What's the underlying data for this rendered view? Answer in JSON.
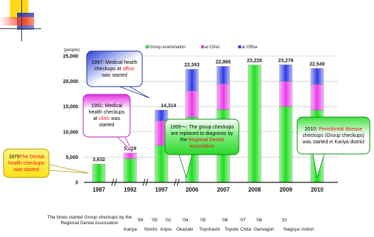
{
  "chart_data": {
    "type": "bar",
    "stacked": true,
    "categories": [
      "1987",
      "1992",
      "1997",
      "2006",
      "2007",
      "2008",
      "2009",
      "2010"
    ],
    "series": [
      {
        "name": "Group examination",
        "color": "#33e633",
        "values": [
          3632,
          4700,
          7300,
          12900,
          14400,
          23226,
          15000,
          14300
        ]
      },
      {
        "name": "at Clinic",
        "color": "#ee44ee",
        "values": [
          0,
          1119,
          4900,
          5200,
          5100,
          0,
          5000,
          5100
        ]
      },
      {
        "name": "at Office",
        "color": "#3344ee",
        "values": [
          0,
          0,
          2114,
          4293,
          3465,
          0,
          3278,
          3149
        ]
      }
    ],
    "totals": [
      "3,632",
      "5,819",
      "14,314",
      "22,393",
      "22,965",
      "23,226",
      "23,278",
      "22,549"
    ],
    "ylabel": "(people)",
    "ylim": [
      0,
      25000
    ],
    "yticks": [
      "0",
      "5,000",
      "10,000",
      "15,000",
      "20,000",
      "25,000"
    ],
    "grid": true,
    "legend_position": "top",
    "annotations": [
      {
        "id": "c1979",
        "parts": [
          [
            "1979",
            ""
          ],
          [
            "The Dental health checkups was started",
            "red"
          ]
        ]
      },
      {
        "id": "c1991",
        "parts": [
          [
            "1991: Medical health checkups at ",
            ""
          ],
          [
            "clinic",
            "red"
          ],
          [
            " was started",
            ""
          ]
        ]
      },
      {
        "id": "c1997",
        "parts": [
          [
            "1997: Medical health checkups at ",
            ""
          ],
          [
            "office",
            "red"
          ],
          [
            " was started",
            ""
          ]
        ]
      },
      {
        "id": "c1999",
        "parts": [
          [
            "1999～: The group checkups are replaced to diagnosis by the ",
            ""
          ],
          [
            "Regional Dental association",
            "red"
          ]
        ]
      },
      {
        "id": "c2010",
        "parts": [
          [
            "2010: ",
            ""
          ],
          [
            "Periodontal disease",
            "red"
          ],
          [
            " checkups (Group checkups) was started in Kariya district",
            ""
          ]
        ]
      }
    ]
  },
  "footer": {
    "caption": "The times started Group checkups by the Regional Dental Association",
    "years": [
      "'99",
      "'00",
      "'02",
      "'04",
      "'05",
      "'06",
      "'07",
      "'08",
      "'10"
    ],
    "places": [
      "Kariya",
      "Nishio",
      "Anjou",
      "Okazaki",
      "Toyohashi",
      "Toyota",
      "Chita",
      "Gamagori",
      "Nagoya",
      "midori"
    ]
  }
}
